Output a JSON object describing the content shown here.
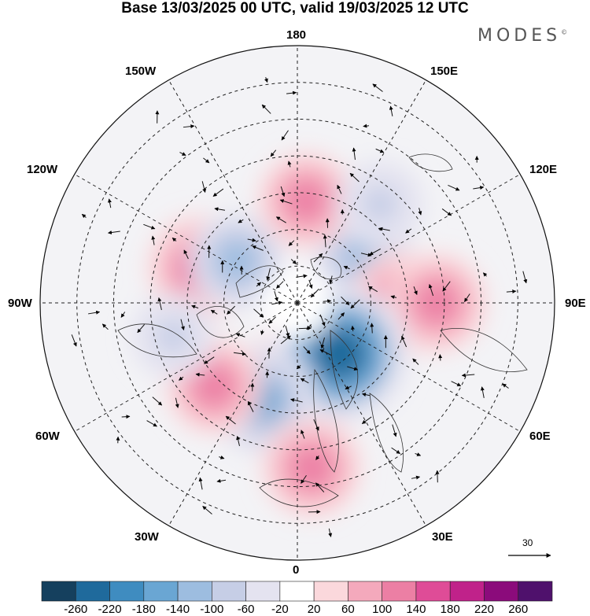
{
  "title": "Base 13/03/2025 00 UTC, valid 19/03/2025 12 UTC",
  "brand": "MODES",
  "brand_mark": "©",
  "longitude_labels": {
    "top": "180",
    "upper_left": "150W",
    "upper_right": "150E",
    "mid_upper_left": "120W",
    "mid_upper_right": "120E",
    "left": "90W",
    "right": "90E",
    "lower_mid_left": "60W",
    "lower_mid_right": "60E",
    "lower_left": "30W",
    "lower_right": "30E",
    "bottom": "0"
  },
  "reference_vector": {
    "value": "30"
  },
  "colorbar": {
    "labels": [
      "-260",
      "-220",
      "-180",
      "-140",
      "-100",
      "-60",
      "-20",
      "20",
      "60",
      "100",
      "140",
      "180",
      "220",
      "260"
    ],
    "colors": [
      "#15405e",
      "#1f6a9c",
      "#3f8cc0",
      "#6aa6d3",
      "#9dbde0",
      "#c6cee6",
      "#e4e3f0",
      "#ffffff",
      "#fbd8dc",
      "#f4a9bc",
      "#ec7fa4",
      "#df4c97",
      "#c0228a",
      "#8b0b7b",
      "#4f116c"
    ]
  },
  "anomaly_fields": [
    {
      "lat": 62,
      "lon": -110,
      "value": 150
    },
    {
      "lat": 70,
      "lon": -125,
      "value": -120
    },
    {
      "lat": 68,
      "lon": 125,
      "value": -130
    },
    {
      "lat": 62,
      "lon": 90,
      "value": 140
    },
    {
      "lat": 52,
      "lon": 90,
      "value": 130
    },
    {
      "lat": 70,
      "lon": 10,
      "value": 200
    },
    {
      "lat": 72,
      "lon": 40,
      "value": -250
    },
    {
      "lat": 62,
      "lon": -20,
      "value": -160
    },
    {
      "lat": 58,
      "lon": -45,
      "value": 120
    },
    {
      "lat": 62,
      "lon": 175,
      "value": 120
    },
    {
      "lat": 45,
      "lon": 5,
      "value": 130
    },
    {
      "lat": 55,
      "lon": -75,
      "value": -80
    },
    {
      "lat": 55,
      "lon": 140,
      "value": -90
    }
  ]
}
